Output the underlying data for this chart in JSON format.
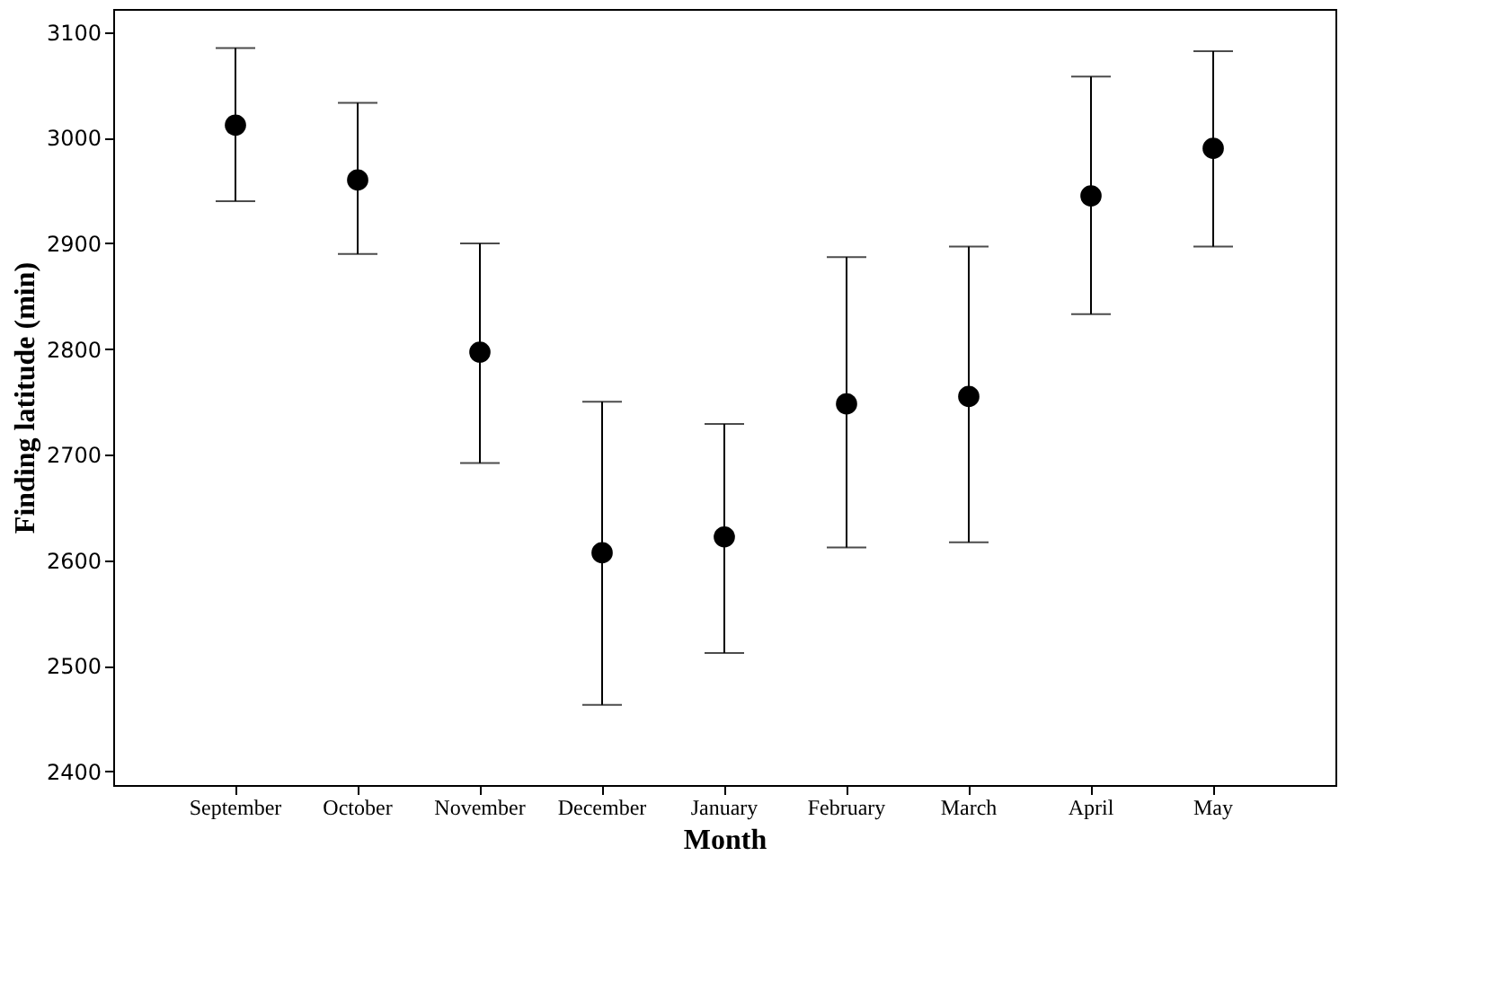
{
  "chart_data": {
    "type": "scatter",
    "xlabel": "Month",
    "ylabel": "Finding latitude (min)",
    "categories": [
      "September",
      "October",
      "November",
      "December",
      "January",
      "February",
      "March",
      "April",
      "May"
    ],
    "values": [
      3012,
      2960,
      2797,
      2607,
      2622,
      2748,
      2755,
      2945,
      2990
    ],
    "errors": [
      [
        2940,
        3085
      ],
      [
        2890,
        3033
      ],
      [
        2692,
        2900
      ],
      [
        2463,
        2750
      ],
      [
        2512,
        2729
      ],
      [
        2612,
        2887
      ],
      [
        2617,
        2897
      ],
      [
        2833,
        3058
      ],
      [
        2897,
        3082
      ]
    ],
    "color": "#000000",
    "marker": "circle",
    "ylim": [
      2387,
      3122
    ],
    "yticks": [
      2400,
      2500,
      2600,
      2700,
      2800,
      2900,
      3000,
      3100
    ],
    "grid": false
  }
}
